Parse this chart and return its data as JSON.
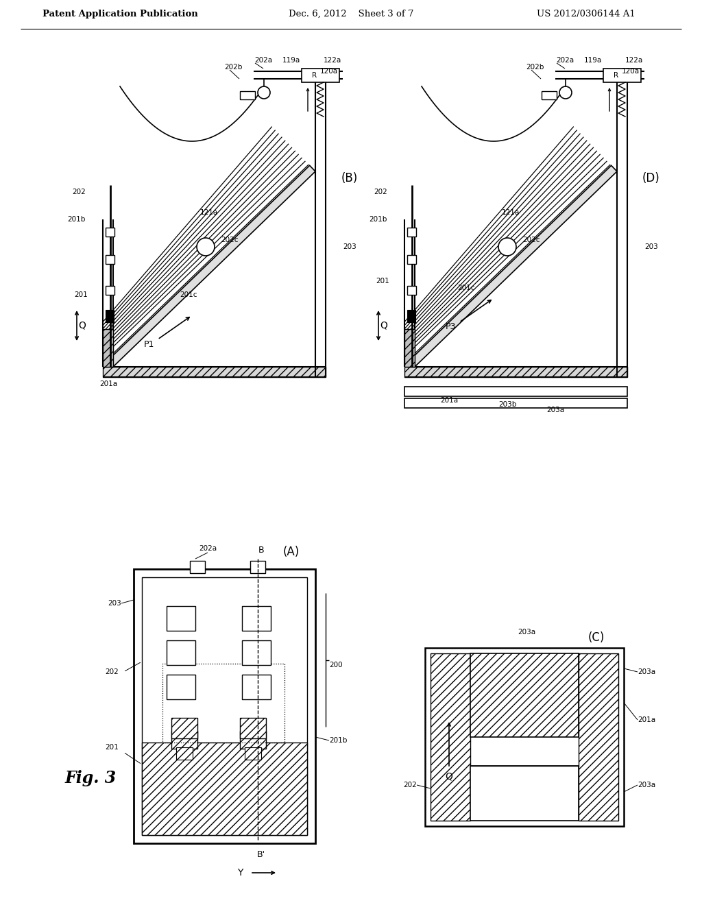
{
  "bg_color": "#ffffff",
  "header_left": "Patent Application Publication",
  "header_center": "Dec. 6, 2012    Sheet 3 of 7",
  "header_right": "US 2012/0306144 A1"
}
